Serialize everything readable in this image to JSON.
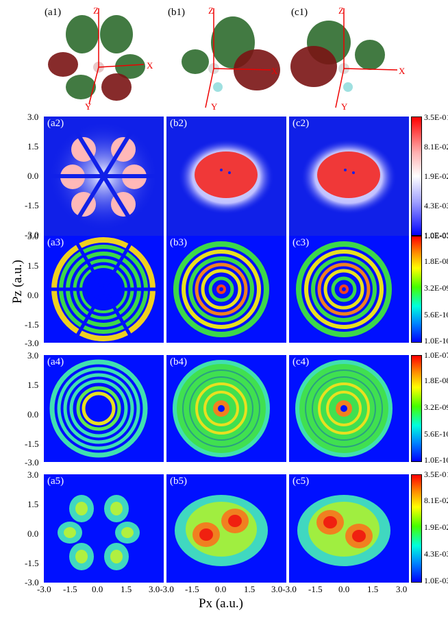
{
  "axes": {
    "y_label": "Pz (a.u.)",
    "x_label": "Px (a.u.)",
    "y_ticks": [
      "3.0",
      "1.5",
      "0.0",
      "-1.5",
      "-3.0"
    ],
    "x_ticks_first": [
      "-3.0",
      "-1.5",
      "0.0",
      "1.5",
      "3.0-3.0"
    ],
    "x_ticks_mid": [
      "-1.5",
      "0.0",
      "1.5",
      "3.0-3.0"
    ],
    "x_ticks_last": [
      "-1.5",
      "0.0",
      "1.5",
      "3.0"
    ]
  },
  "molecules": {
    "a1": "(a1)",
    "b1": "(b1)",
    "c1": "(c1)",
    "axis_x": "X",
    "axis_y": "Y",
    "axis_z": "Z"
  },
  "panels": {
    "row2": [
      "(a2)",
      "(b2)",
      "(c2)"
    ],
    "row3": [
      "(a3)",
      "(b3)",
      "(c3)"
    ],
    "row4": [
      "(a4)",
      "(b4)",
      "(c4)"
    ],
    "row5": [
      "(a5)",
      "(b5)",
      "(c5)"
    ]
  },
  "colorbars": {
    "row2": [
      "3.5E-01",
      "8.1E-02",
      "1.9E-02",
      "4.3E-03",
      "1.0E-03"
    ],
    "row3": [
      "1.0E-07",
      "1.8E-08",
      "3.2E-09",
      "5.6E-10",
      "1.0E-10"
    ],
    "row4": [
      "1.0E-07",
      "1.8E-08",
      "3.2E-09",
      "5.6E-10",
      "1.0E-10"
    ],
    "row5": [
      "3.5E-01",
      "8.1E-02",
      "1.9E-02",
      "4.3E-03",
      "1.0E-03"
    ]
  }
}
